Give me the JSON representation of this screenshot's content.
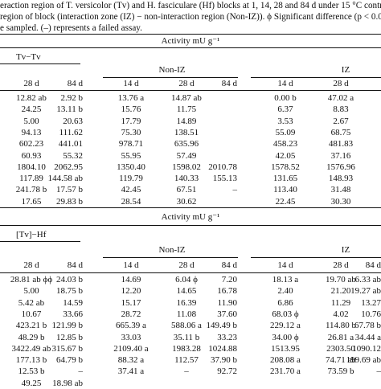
{
  "caption": {
    "line1": "eraction region of T. versicolor (Tv) and H. fasciculare (Hf) blocks at 1, 14, 28 and 84 d under 15 °C controlled t",
    "line2": "region of block (interaction zone (IZ) − non-interaction region (Non-IZ)). ϕ Significant difference (p < 0.05) in",
    "line3": "e sampled. (–) represents a failed assay."
  },
  "section1": {
    "activity_header": "Activity mU g⁻¹",
    "group_left": "Tv−Tv",
    "group_mid": "Non-IZ",
    "group_right": "IZ",
    "cols": [
      "28 d",
      "84 d",
      "14 d",
      "28 d",
      "84 d",
      "14 d",
      "28 d"
    ],
    "rows": [
      [
        "12.82 ab",
        "2.92 b",
        "13.76 a",
        "14.87 ab",
        "",
        "0.00 b",
        "47.02 a"
      ],
      [
        "24.25",
        "13.11 b",
        "15.76",
        "11.75",
        "",
        "6.37",
        "8.83"
      ],
      [
        "5.00",
        "20.63",
        "17.79",
        "14.89",
        "",
        "3.53",
        "2.67"
      ],
      [
        "94.13",
        "111.62",
        "75.30",
        "138.51",
        "",
        "55.09",
        "68.75"
      ],
      [
        "602.23",
        "441.01",
        "978.71",
        "635.96",
        "",
        "458.23",
        "481.83"
      ],
      [
        "60.93",
        "55.32",
        "55.95",
        "57.49",
        "",
        "42.05",
        "37.16"
      ],
      [
        "1804.10",
        "2062.95",
        "1350.40",
        "1598.02",
        "2010.78",
        "1578.52",
        "1576.96"
      ],
      [
        "117.89",
        "144.58 ab",
        "119.79",
        "140.33",
        "155.13",
        "131.65",
        "148.93"
      ],
      [
        "241.78 b",
        "17.57 b",
        "42.45",
        "67.51",
        "–",
        "113.40",
        "31.48"
      ],
      [
        "17.65",
        "29.83 b",
        "28.54",
        "30.62",
        "",
        "22.45",
        "30.30"
      ]
    ]
  },
  "section2": {
    "activity_header": "Activity mU g⁻¹",
    "group_left": "[Tv]−Hf",
    "group_mid": "Non-IZ",
    "group_right": "IZ",
    "cols": [
      "28 d",
      "84 d",
      "14 d",
      "28 d",
      "84 d",
      "14 d",
      "28 d",
      "84 d"
    ],
    "rows": [
      [
        "28.81 ab ϕϕ",
        "24.03 b",
        "14.69",
        "6.04 ϕ",
        "7.20",
        "18.13 a",
        "19.70 ab",
        "6.33 ab"
      ],
      [
        "5.00",
        "18.75 b",
        "12.20",
        "14.65",
        "16.78",
        "2.40",
        "21.20",
        "19.27 ab"
      ],
      [
        "5.42 ab",
        "14.59",
        "15.17",
        "16.39",
        "11.90",
        "6.86",
        "11.29",
        "13.27"
      ],
      [
        "10.67",
        "33.66",
        "28.72",
        "11.08",
        "37.60",
        "68.03 ϕ",
        "4.02",
        "10.76"
      ],
      [
        "423.21 b",
        "121.99 b",
        "665.39 a",
        "588.06 a",
        "149.49 b",
        "229.12 a",
        "114.80 b",
        "67.78 b"
      ],
      [
        "48.29 b",
        "12.85 b",
        "33.03",
        "35.11 b",
        "33.23",
        "34.00 ϕ",
        "26.81 a",
        "34.44 a"
      ],
      [
        "3422.49 ab",
        "315.67 b",
        "2109.40 a",
        "1983.28",
        "1024.88",
        "1513.95",
        "2303.50",
        "1090.12"
      ],
      [
        "177.13 b",
        "64.79 b",
        "88.32 a",
        "112.57",
        "37.90 b",
        "208.08 a",
        "74.71 ab",
        "199.69 ab"
      ],
      [
        "12.53 b",
        "–",
        "37.41 a",
        "–",
        "92.72",
        "231.70 a",
        "73.59 b",
        "–"
      ],
      [
        "49.25",
        "18.98 ab",
        "",
        "",
        "",
        "",
        "",
        ""
      ]
    ]
  }
}
